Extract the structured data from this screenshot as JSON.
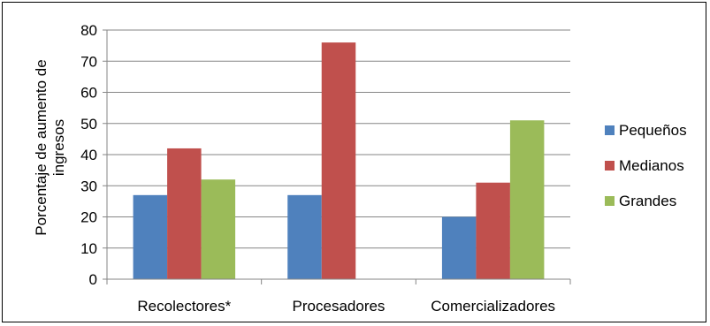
{
  "chart_data": {
    "type": "bar",
    "categories": [
      "Recolectores*",
      "Procesadores",
      "Comercializadores"
    ],
    "series": [
      {
        "name": "Pequeños",
        "values": [
          27,
          27,
          20
        ],
        "color": "#4f81bd"
      },
      {
        "name": "Medianos",
        "values": [
          42,
          76,
          31
        ],
        "color": "#c0504d"
      },
      {
        "name": "Grandes",
        "values": [
          32,
          null,
          51
        ],
        "color": "#9bbb59"
      }
    ],
    "ylabel": "Porcentaje de aumento de ingresos",
    "ylim": [
      0,
      80
    ],
    "yticks": [
      0,
      10,
      20,
      30,
      40,
      50,
      60,
      70,
      80
    ],
    "grid": true,
    "legend_position": "right"
  }
}
